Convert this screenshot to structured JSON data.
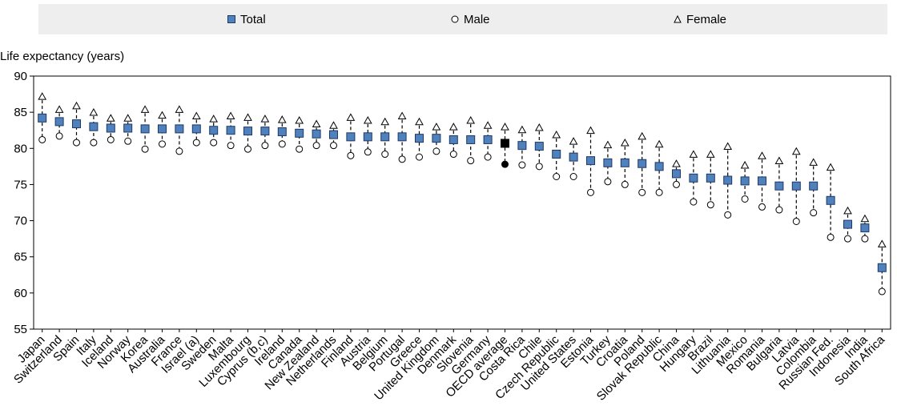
{
  "legend": {
    "total_label": "Total",
    "male_label": "Male",
    "female_label": "Female"
  },
  "chart_data": {
    "type": "scatter",
    "title": "",
    "xlabel": "",
    "ylabel": "Life expectancy (years)",
    "ylim": [
      55,
      90
    ],
    "yticks": [
      55,
      60,
      65,
      70,
      75,
      80,
      85,
      90
    ],
    "grid": false,
    "legend_position": "top",
    "colors": {
      "total": "#4f81bd",
      "total_border": "#1f3864",
      "highlight": "#000000"
    },
    "highlight_category": "OECD average",
    "categories": [
      "Japan",
      "Switzerland",
      "Spain",
      "Italy",
      "Iceland",
      "Norway",
      "Korea",
      "Australia",
      "France",
      "Israel (a)",
      "Sweden",
      "Malta",
      "Luxembourg",
      "Cyprus (b,c)",
      "Ireland",
      "Canada",
      "New Zealand",
      "Netherlands",
      "Finland",
      "Austria",
      "Belgium",
      "Portugal",
      "Greece",
      "United Kingdom",
      "Denmark",
      "Slovenia",
      "Germany",
      "OECD average",
      "Costa Rica",
      "Chile",
      "Czech Republic",
      "United States",
      "Estonia",
      "Turkey",
      "Croatia",
      "Poland",
      "Slovak Republic",
      "China",
      "Hungary",
      "Brazil",
      "Lithuania",
      "Mexico",
      "Romania",
      "Bulgaria",
      "Latvia",
      "Colombia",
      "Russian Fed.",
      "Indonesia",
      "India",
      "South Africa"
    ],
    "series": [
      {
        "name": "Total",
        "marker": "square",
        "values": [
          84.2,
          83.7,
          83.4,
          83.0,
          82.8,
          82.8,
          82.7,
          82.7,
          82.7,
          82.7,
          82.5,
          82.5,
          82.4,
          82.4,
          82.3,
          82.1,
          82.0,
          81.9,
          81.6,
          81.6,
          81.6,
          81.6,
          81.4,
          81.4,
          81.2,
          81.2,
          81.2,
          80.7,
          80.4,
          80.3,
          79.2,
          78.8,
          78.3,
          78.0,
          78.0,
          77.9,
          77.5,
          76.5,
          75.9,
          75.9,
          75.6,
          75.5,
          75.5,
          74.8,
          74.8,
          74.8,
          72.8,
          69.5,
          69.0,
          63.5
        ]
      },
      {
        "name": "Male",
        "marker": "circle",
        "values": [
          81.2,
          81.7,
          80.8,
          80.8,
          81.2,
          81.0,
          79.9,
          80.6,
          79.6,
          80.8,
          80.8,
          80.4,
          79.9,
          80.4,
          80.6,
          79.9,
          80.4,
          80.4,
          79.0,
          79.5,
          79.2,
          78.5,
          78.8,
          79.6,
          79.2,
          78.3,
          78.8,
          77.8,
          77.7,
          77.5,
          76.1,
          76.1,
          73.9,
          75.4,
          75.0,
          73.9,
          73.9,
          75.0,
          72.6,
          72.2,
          70.8,
          73.0,
          71.9,
          71.5,
          69.9,
          71.1,
          67.7,
          67.5,
          67.5,
          60.2
        ]
      },
      {
        "name": "Female",
        "marker": "triangle",
        "values": [
          87.1,
          85.3,
          85.8,
          84.9,
          84.1,
          84.1,
          85.3,
          84.5,
          85.3,
          84.4,
          84.0,
          84.4,
          84.2,
          84.0,
          83.9,
          83.8,
          83.3,
          83.1,
          84.2,
          83.8,
          83.6,
          84.4,
          83.6,
          82.9,
          82.9,
          83.8,
          83.1,
          82.9,
          82.5,
          82.8,
          81.8,
          80.9,
          82.4,
          80.4,
          80.7,
          81.6,
          80.5,
          77.8,
          79.1,
          79.1,
          80.2,
          77.6,
          78.9,
          78.2,
          79.5,
          78.0,
          77.3,
          71.3,
          70.2,
          66.7
        ]
      }
    ]
  }
}
